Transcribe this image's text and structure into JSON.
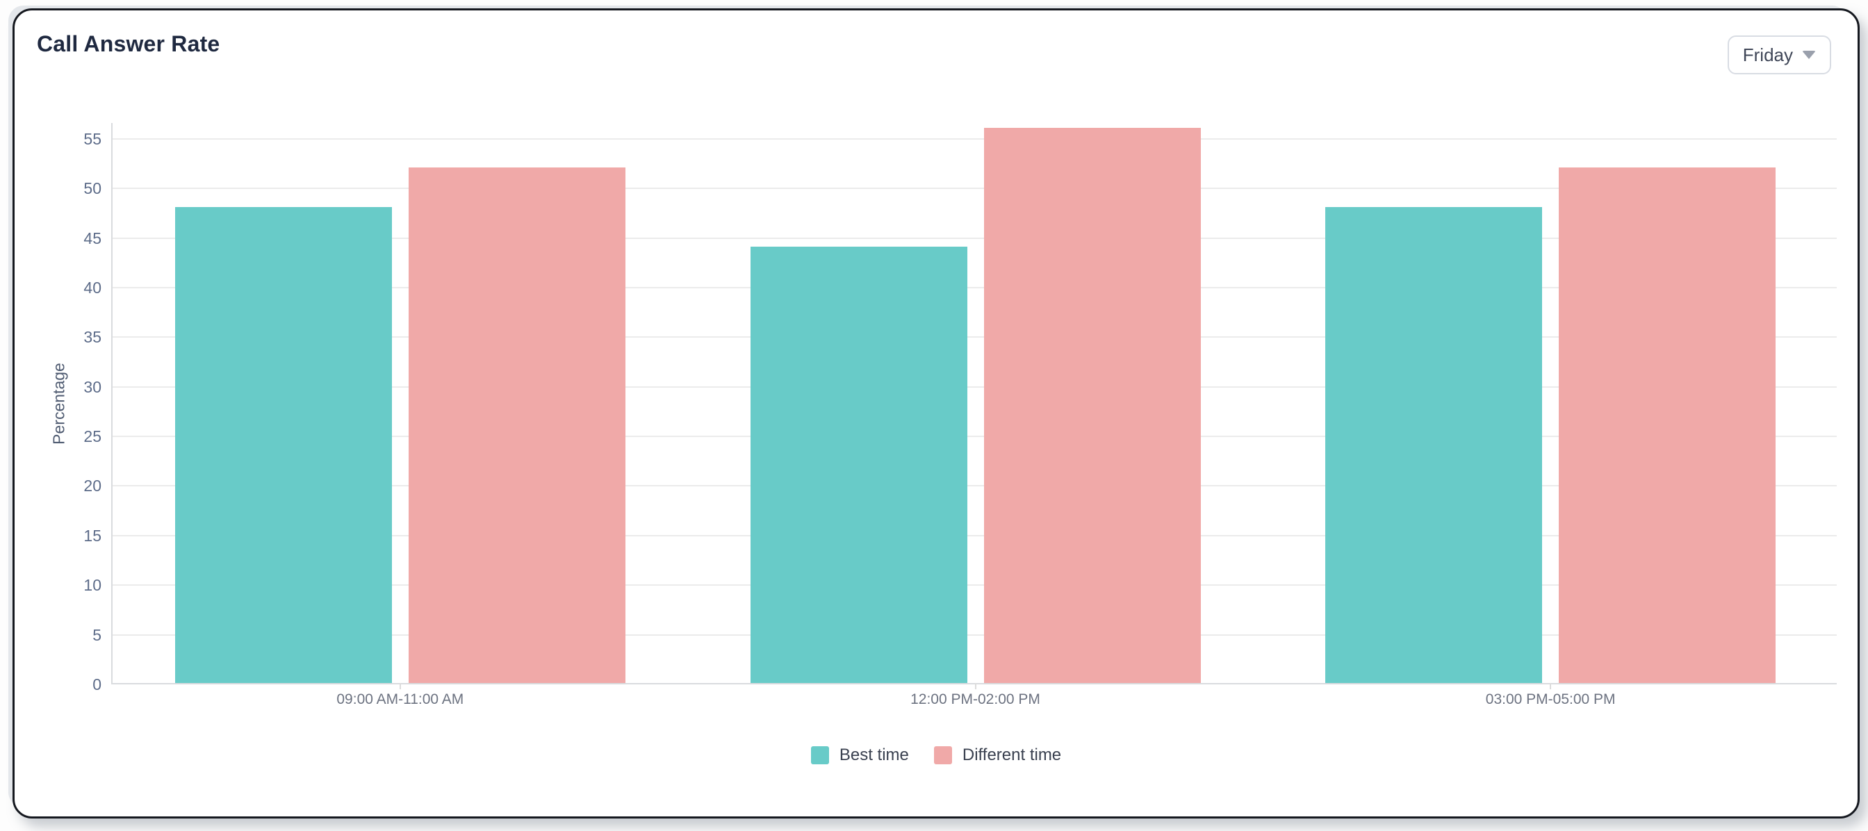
{
  "card": {
    "title": "Call Answer Rate",
    "day_filter": {
      "value": "Friday"
    }
  },
  "chart_data": {
    "type": "bar",
    "title": "Call Answer Rate",
    "categories": [
      "09:00 AM-11:00 AM",
      "12:00 PM-02:00 PM",
      "03:00 PM-05:00 PM"
    ],
    "series": [
      {
        "name": "Best time",
        "color": "#68CBC8",
        "values": [
          48,
          44,
          48
        ]
      },
      {
        "name": "Different time",
        "color": "#F0A9A8",
        "values": [
          52,
          56,
          52
        ]
      }
    ],
    "xlabel": "",
    "ylabel": "Percentage",
    "ylim": [
      0,
      56.6
    ],
    "yticks": [
      0,
      5,
      10,
      15,
      20,
      25,
      30,
      35,
      40,
      45,
      50,
      55
    ],
    "grid": true,
    "legend_position": "bottom"
  },
  "colors": {
    "bar_teal": "#68CBC8",
    "bar_pink": "#F0A9A8",
    "card_border": "#15181f",
    "grid_line": "#ebebeb",
    "axis_line": "#d9dbde",
    "axis_text": "#5d6c89",
    "title_text": "#1f2940"
  }
}
